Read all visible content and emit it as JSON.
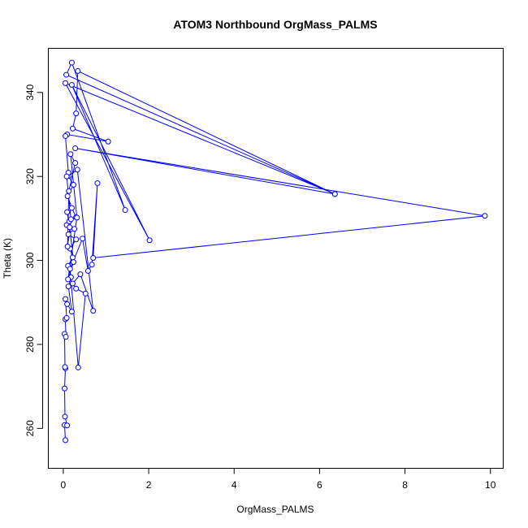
{
  "chart_data": {
    "type": "line",
    "title": "ATOM3 Northbound OrgMass_PALMS",
    "xlabel": "OrgMass_PALMS",
    "ylabel": "Theta (K)",
    "xlim": [
      -0.35,
      10.3
    ],
    "ylim": [
      250.5,
      350.5
    ],
    "x_ticks": [
      0,
      2,
      4,
      6,
      8,
      10
    ],
    "y_ticks": [
      260,
      280,
      300,
      320,
      340
    ],
    "line_color": "#0000ff",
    "marker": "open-circle",
    "grid": false,
    "series": [
      {
        "points": [
          [
            0.05,
            257.2
          ],
          [
            0.03,
            260.8
          ],
          [
            0.09,
            260.7
          ],
          [
            0.04,
            262.8
          ],
          [
            0.03,
            269.5
          ],
          [
            0.05,
            274.3
          ],
          [
            0.04,
            274.6
          ],
          [
            0.03,
            282.5
          ],
          [
            0.06,
            281.8
          ],
          [
            0.05,
            286.0
          ],
          [
            0.08,
            286.3
          ],
          [
            0.05,
            290.8
          ],
          [
            0.09,
            289.6
          ],
          [
            0.2,
            287.8
          ],
          [
            0.12,
            293.8
          ],
          [
            0.18,
            296.0
          ],
          [
            0.11,
            298.7
          ],
          [
            0.22,
            300.7
          ],
          [
            0.16,
            302.8
          ],
          [
            0.3,
            305.0
          ],
          [
            0.12,
            306.2
          ],
          [
            0.26,
            307.5
          ],
          [
            0.08,
            308.4
          ],
          [
            0.14,
            309.3
          ],
          [
            0.3,
            310.3
          ],
          [
            0.2,
            312.5
          ],
          [
            0.1,
            315.3
          ],
          [
            0.24,
            318.0
          ],
          [
            0.12,
            320.1
          ],
          [
            0.33,
            321.6
          ],
          [
            0.7,
            288.0
          ],
          [
            0.4,
            296.7
          ],
          [
            0.22,
            294.5
          ],
          [
            0.3,
            293.3
          ],
          [
            0.52,
            292.1
          ],
          [
            0.35,
            274.5
          ],
          [
            0.16,
            298.0
          ],
          [
            0.45,
            305.2
          ],
          [
            0.58,
            297.5
          ],
          [
            0.67,
            299.0
          ],
          [
            0.8,
            318.4
          ],
          [
            0.7,
            300.6
          ],
          [
            9.87,
            310.6
          ],
          [
            0.28,
            326.7
          ],
          [
            6.36,
            315.8
          ],
          [
            0.05,
            342.2
          ],
          [
            2.02,
            304.8
          ],
          [
            0.2,
            341.8
          ],
          [
            1.45,
            312.0
          ],
          [
            0.2,
            347.1
          ],
          [
            0.07,
            344.2
          ],
          [
            6.36,
            315.8
          ],
          [
            0.34,
            345.1
          ],
          [
            0.3,
            335.0
          ],
          [
            0.22,
            331.4
          ],
          [
            1.05,
            328.3
          ],
          [
            0.09,
            330.0
          ],
          [
            0.05,
            329.6
          ],
          [
            0.12,
            320.9
          ],
          [
            0.08,
            320.0
          ],
          [
            0.18,
            309.8
          ],
          [
            0.1,
            303.3
          ],
          [
            0.13,
            316.5
          ],
          [
            0.28,
            323.2
          ],
          [
            0.17,
            325.3
          ],
          [
            0.32,
            310.2
          ],
          [
            0.11,
            295.5
          ],
          [
            0.24,
            299.6
          ],
          [
            0.15,
            307.9
          ],
          [
            0.09,
            311.5
          ]
        ]
      }
    ]
  }
}
